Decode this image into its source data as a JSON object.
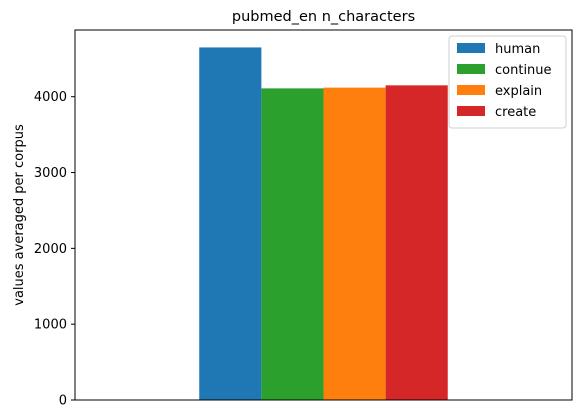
{
  "chart_data": {
    "type": "bar",
    "title": "pubmed_en n_characters",
    "xlabel": "",
    "ylabel": "values averaged per corpus",
    "categories": [
      ""
    ],
    "series": [
      {
        "name": "human",
        "values": [
          4650
        ],
        "color": "#1f77b4"
      },
      {
        "name": "continue",
        "values": [
          4110
        ],
        "color": "#2ca02c"
      },
      {
        "name": "explain",
        "values": [
          4120
        ],
        "color": "#ff7f0e"
      },
      {
        "name": "create",
        "values": [
          4150
        ],
        "color": "#d62728"
      }
    ],
    "ylim": [
      0,
      4880
    ],
    "yticks": [
      0,
      1000,
      2000,
      3000,
      4000
    ],
    "legend": "top-right",
    "grid": false
  }
}
